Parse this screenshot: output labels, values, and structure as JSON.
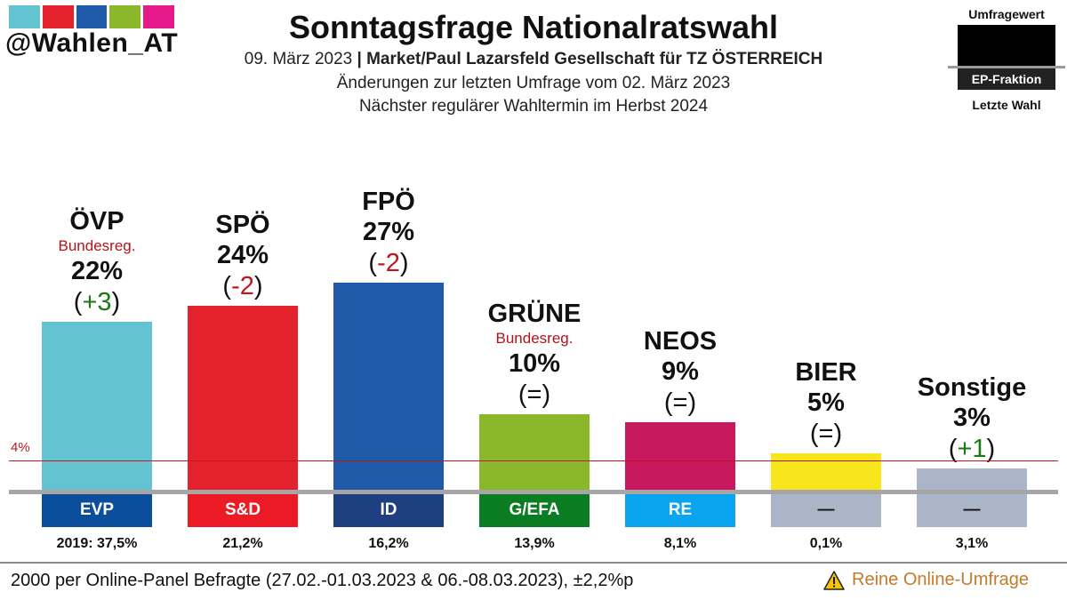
{
  "brand": {
    "handle": "@Wahlen_AT",
    "stripe_colors": [
      "#63c3d0",
      "#e3222d",
      "#1e5aa8",
      "#8ab82a",
      "#e6198a"
    ]
  },
  "header": {
    "title": "Sonntagsfrage Nationalratswahl",
    "date": "09. März 2023",
    "separator": "|",
    "institute": "Market/Paul Lazarsfeld Gesellschaft für TZ ÖSTERREICH",
    "changes_note": "Änderungen zur letzten Umfrage vom 02. März 2023",
    "next_election": "Nächster regulärer Wahltermin im Herbst 2024"
  },
  "legend": {
    "top": "Umfragewert",
    "middle": "EP-Fraktion",
    "bottom": "Letzte Wahl"
  },
  "chart_data": {
    "type": "bar",
    "categories": [
      "ÖVP",
      "SPÖ",
      "FPÖ",
      "GRÜNE",
      "NEOS",
      "BIER",
      "Sonstige"
    ],
    "values": [
      22,
      24,
      27,
      10,
      9,
      5,
      3
    ],
    "value_labels": [
      "22%",
      "24%",
      "27%",
      "10%",
      "9%",
      "5%",
      "3%"
    ],
    "changes": [
      "(+3)",
      "(-2)",
      "(-2)",
      "(=)",
      "(=)",
      "(=)",
      "(+1)"
    ],
    "change_dir": [
      "pos",
      "neg",
      "neg",
      "neutral",
      "neutral",
      "neutral",
      "pos"
    ],
    "government": [
      "Bundesreg.",
      "",
      "",
      "Bundesreg.",
      "",
      "",
      ""
    ],
    "colors": [
      "#63c3d0",
      "#e3222d",
      "#1e5aa8",
      "#8ab82a",
      "#c8185e",
      "#f9e51c",
      "#aab5c8"
    ],
    "ep_fraction": [
      "EVP",
      "S&D",
      "ID",
      "G/EFA",
      "RE",
      "—",
      "—"
    ],
    "ep_colors": [
      "#0b4f9c",
      "#ec1a24",
      "#1e3f80",
      "#0a7d22",
      "#0ba4f0",
      "#aab5c8",
      "#aab5c8"
    ],
    "ep_text_colors": [
      "#ffffff",
      "#ffffff",
      "#ffffff",
      "#ffffff",
      "#ffffff",
      "#111111",
      "#111111"
    ],
    "last_election": [
      "2019: 37,5%",
      "21,2%",
      "16,2%",
      "13,9%",
      "8,1%",
      "0,1%",
      "3,1%"
    ],
    "threshold": {
      "value": 4,
      "label": "4%"
    },
    "ylim": [
      0,
      30
    ]
  },
  "footer": {
    "sample": "2000 per Online-Panel Befragte (27.02.-01.03.2023 & 06.-08.03.2023), ±2,2%p",
    "warning": "Reine Online-Umfrage"
  }
}
